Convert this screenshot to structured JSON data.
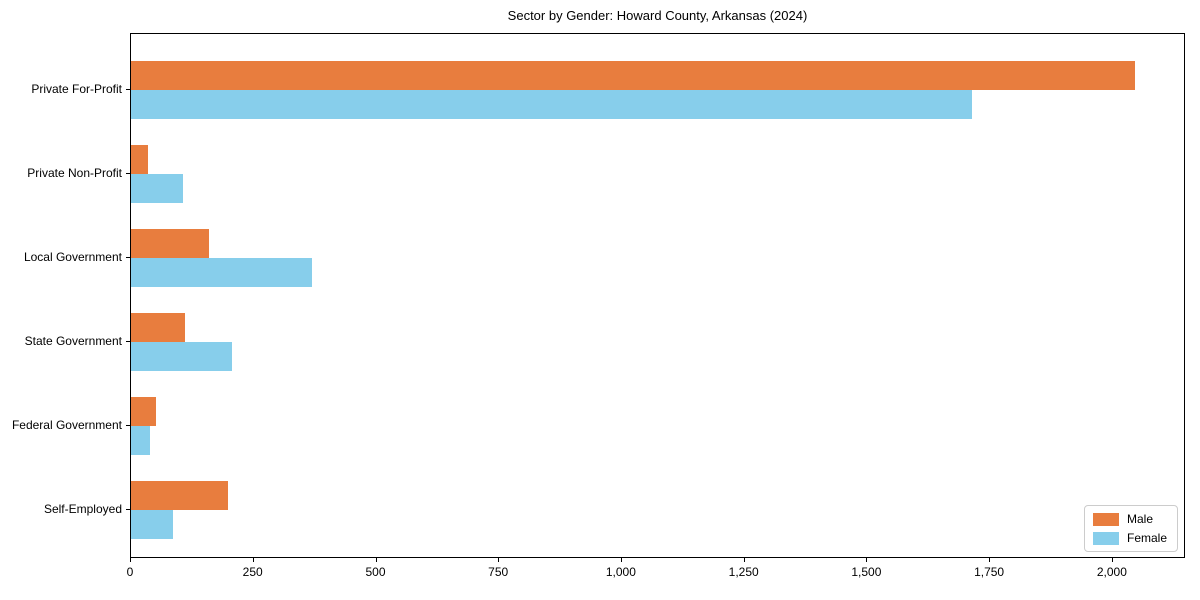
{
  "chart_data": {
    "type": "bar",
    "orientation": "horizontal",
    "title": "Sector by Gender: Howard County, Arkansas (2024)",
    "categories": [
      "Private For-Profit",
      "Private Non-Profit",
      "Local Government",
      "State Government",
      "Federal Government",
      "Self-Employed"
    ],
    "series": [
      {
        "name": "Male",
        "color": "#E87D3E",
        "values": [
          2046,
          34,
          158,
          109,
          51,
          198
        ]
      },
      {
        "name": "Female",
        "color": "#87CEEB",
        "values": [
          1714,
          106,
          368,
          205,
          39,
          85
        ]
      }
    ],
    "xlabel": "",
    "ylabel": "",
    "xlim": [
      0,
      2149
    ],
    "x_ticks": [
      0,
      250,
      500,
      750,
      1000,
      1250,
      1500,
      1750,
      2000
    ],
    "x_tick_labels": [
      "0",
      "250",
      "500",
      "750",
      "1,000",
      "1,250",
      "1,500",
      "1,750",
      "2,000"
    ],
    "legend_position": "lower right",
    "grid": false
  }
}
